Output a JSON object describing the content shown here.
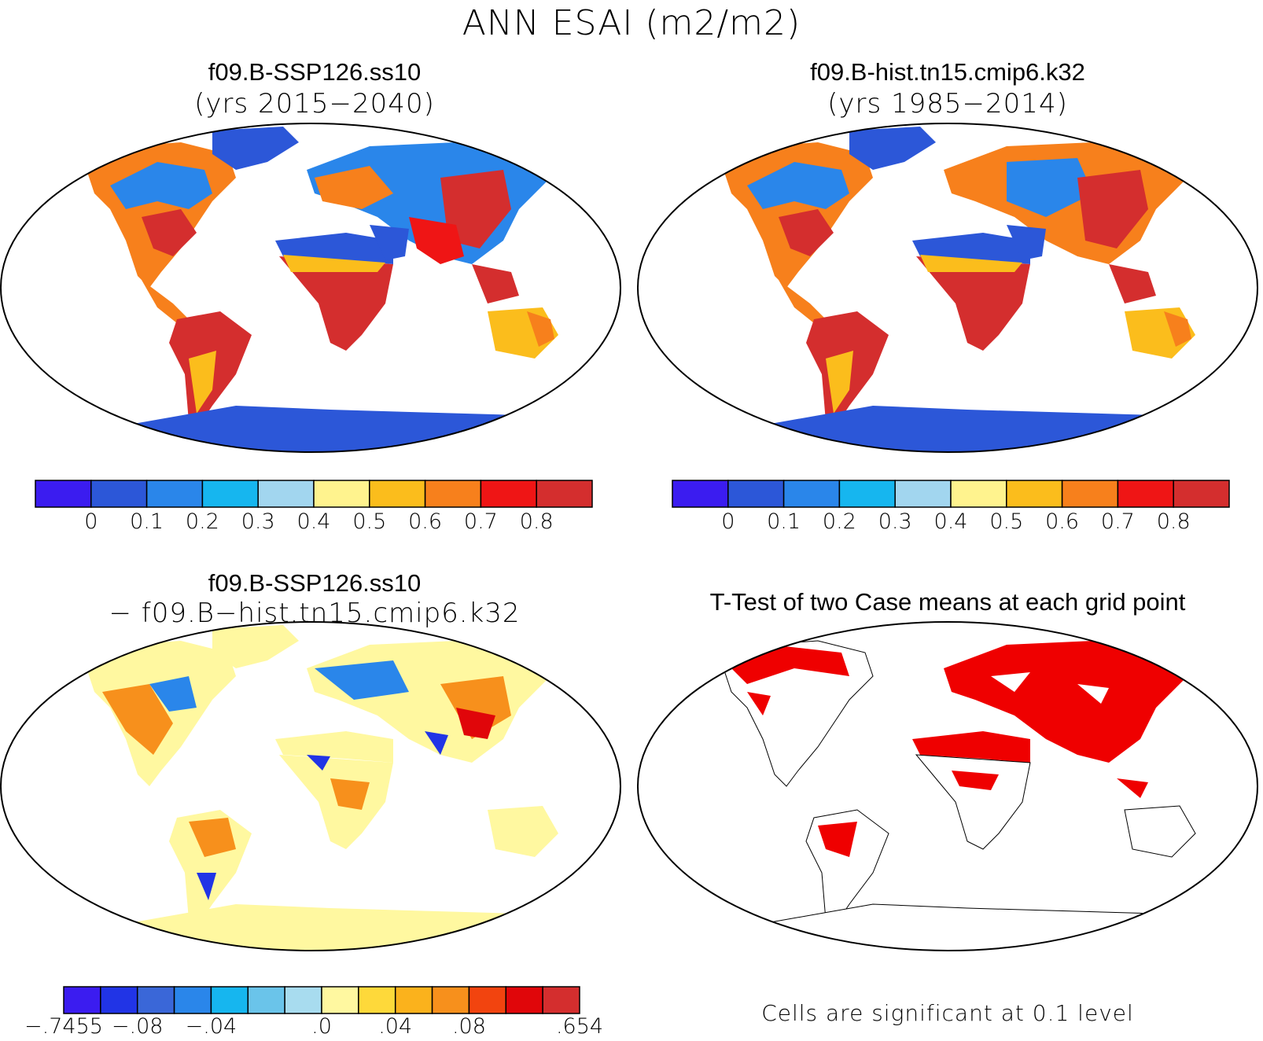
{
  "figure": {
    "title": "ANN ESAI (m2/m2)"
  },
  "panels": {
    "top_left": {
      "title": "f09.B-SSP126.ss10",
      "subtitle": "(yrs 2015−2040)"
    },
    "top_right": {
      "title": "f09.B-hist.tn15.cmip6.k32",
      "subtitle": "(yrs 1985−2014)"
    },
    "bottom_left": {
      "title": "f09.B-SSP126.ss10",
      "subtitle": "− f09.B−hist.tn15.cmip6.k32"
    },
    "bottom_right": {
      "title": "T-Test of two Case means at each grid point",
      "note": "Cells are significant at 0.1 level"
    }
  },
  "colorbars": {
    "abs": {
      "colors": [
        "#3b1cf0",
        "#2c57d8",
        "#2a86ea",
        "#16b6ef",
        "#a2d6ef",
        "#fff38e",
        "#fbbd1c",
        "#f7801c",
        "#ef1515",
        "#d42e2e"
      ],
      "labels": [
        "0",
        "0.1",
        "0.2",
        "0.3",
        "0.4",
        "0.5",
        "0.6",
        "0.7",
        "0.8"
      ]
    },
    "diff": {
      "colors": [
        "#3b1cf0",
        "#2134e6",
        "#3a67d8",
        "#2a86ea",
        "#16b6ef",
        "#6ac4ea",
        "#a8dcef",
        "#fff8a0",
        "#fed93a",
        "#fbb21c",
        "#f7901c",
        "#f2440f",
        "#e0060a",
        "#d42e2e"
      ],
      "labels": [
        "-.7455",
        "-.08",
        "-.04",
        ".0",
        ".04",
        ".08",
        ".654"
      ]
    }
  },
  "map_data": {
    "projection": "Robinson",
    "field": "ESAI",
    "units": "m2/m2",
    "region_colors": {
      "abs_panel": {
        "desert": "#2c57d8",
        "antarctica": "#2c57d8",
        "greenland": "#2c57d8",
        "tropics": "#d42e2e",
        "temperate": "#f7801c",
        "boreal": "#2a86ea"
      },
      "diff_panel": {
        "background": "#fff8a0",
        "positive": "#f7901c",
        "negative": "#2a86ea"
      },
      "ttest_panel": {
        "significant": "#ef0000"
      }
    }
  }
}
